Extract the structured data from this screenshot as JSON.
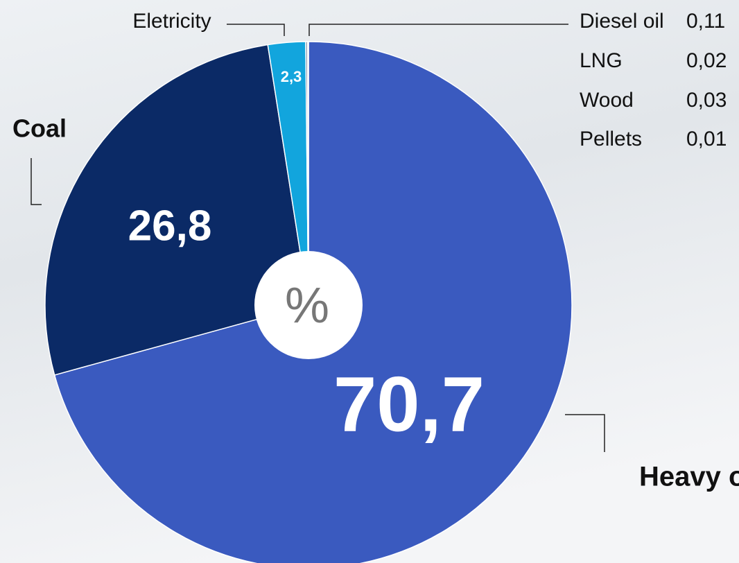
{
  "chart_data": {
    "type": "pie",
    "center_label": "%",
    "categories": [
      "Heavy oil",
      "Coal",
      "Eletricity",
      "Diesel oil",
      "LNG",
      "Wood",
      "Pellets"
    ],
    "values": [
      70.7,
      26.8,
      2.3,
      0.11,
      0.02,
      0.03,
      0.01
    ],
    "value_labels": [
      "70,7",
      "26,8",
      "2,3",
      "0,11",
      "0,02",
      "0,03",
      "0,01"
    ],
    "colors": [
      "#3a5abf",
      "#0b2a66",
      "#12a5dd",
      "#6d7f9a",
      "#8fa0b8",
      "#a8b4c6",
      "#c2cad6"
    ]
  }
}
